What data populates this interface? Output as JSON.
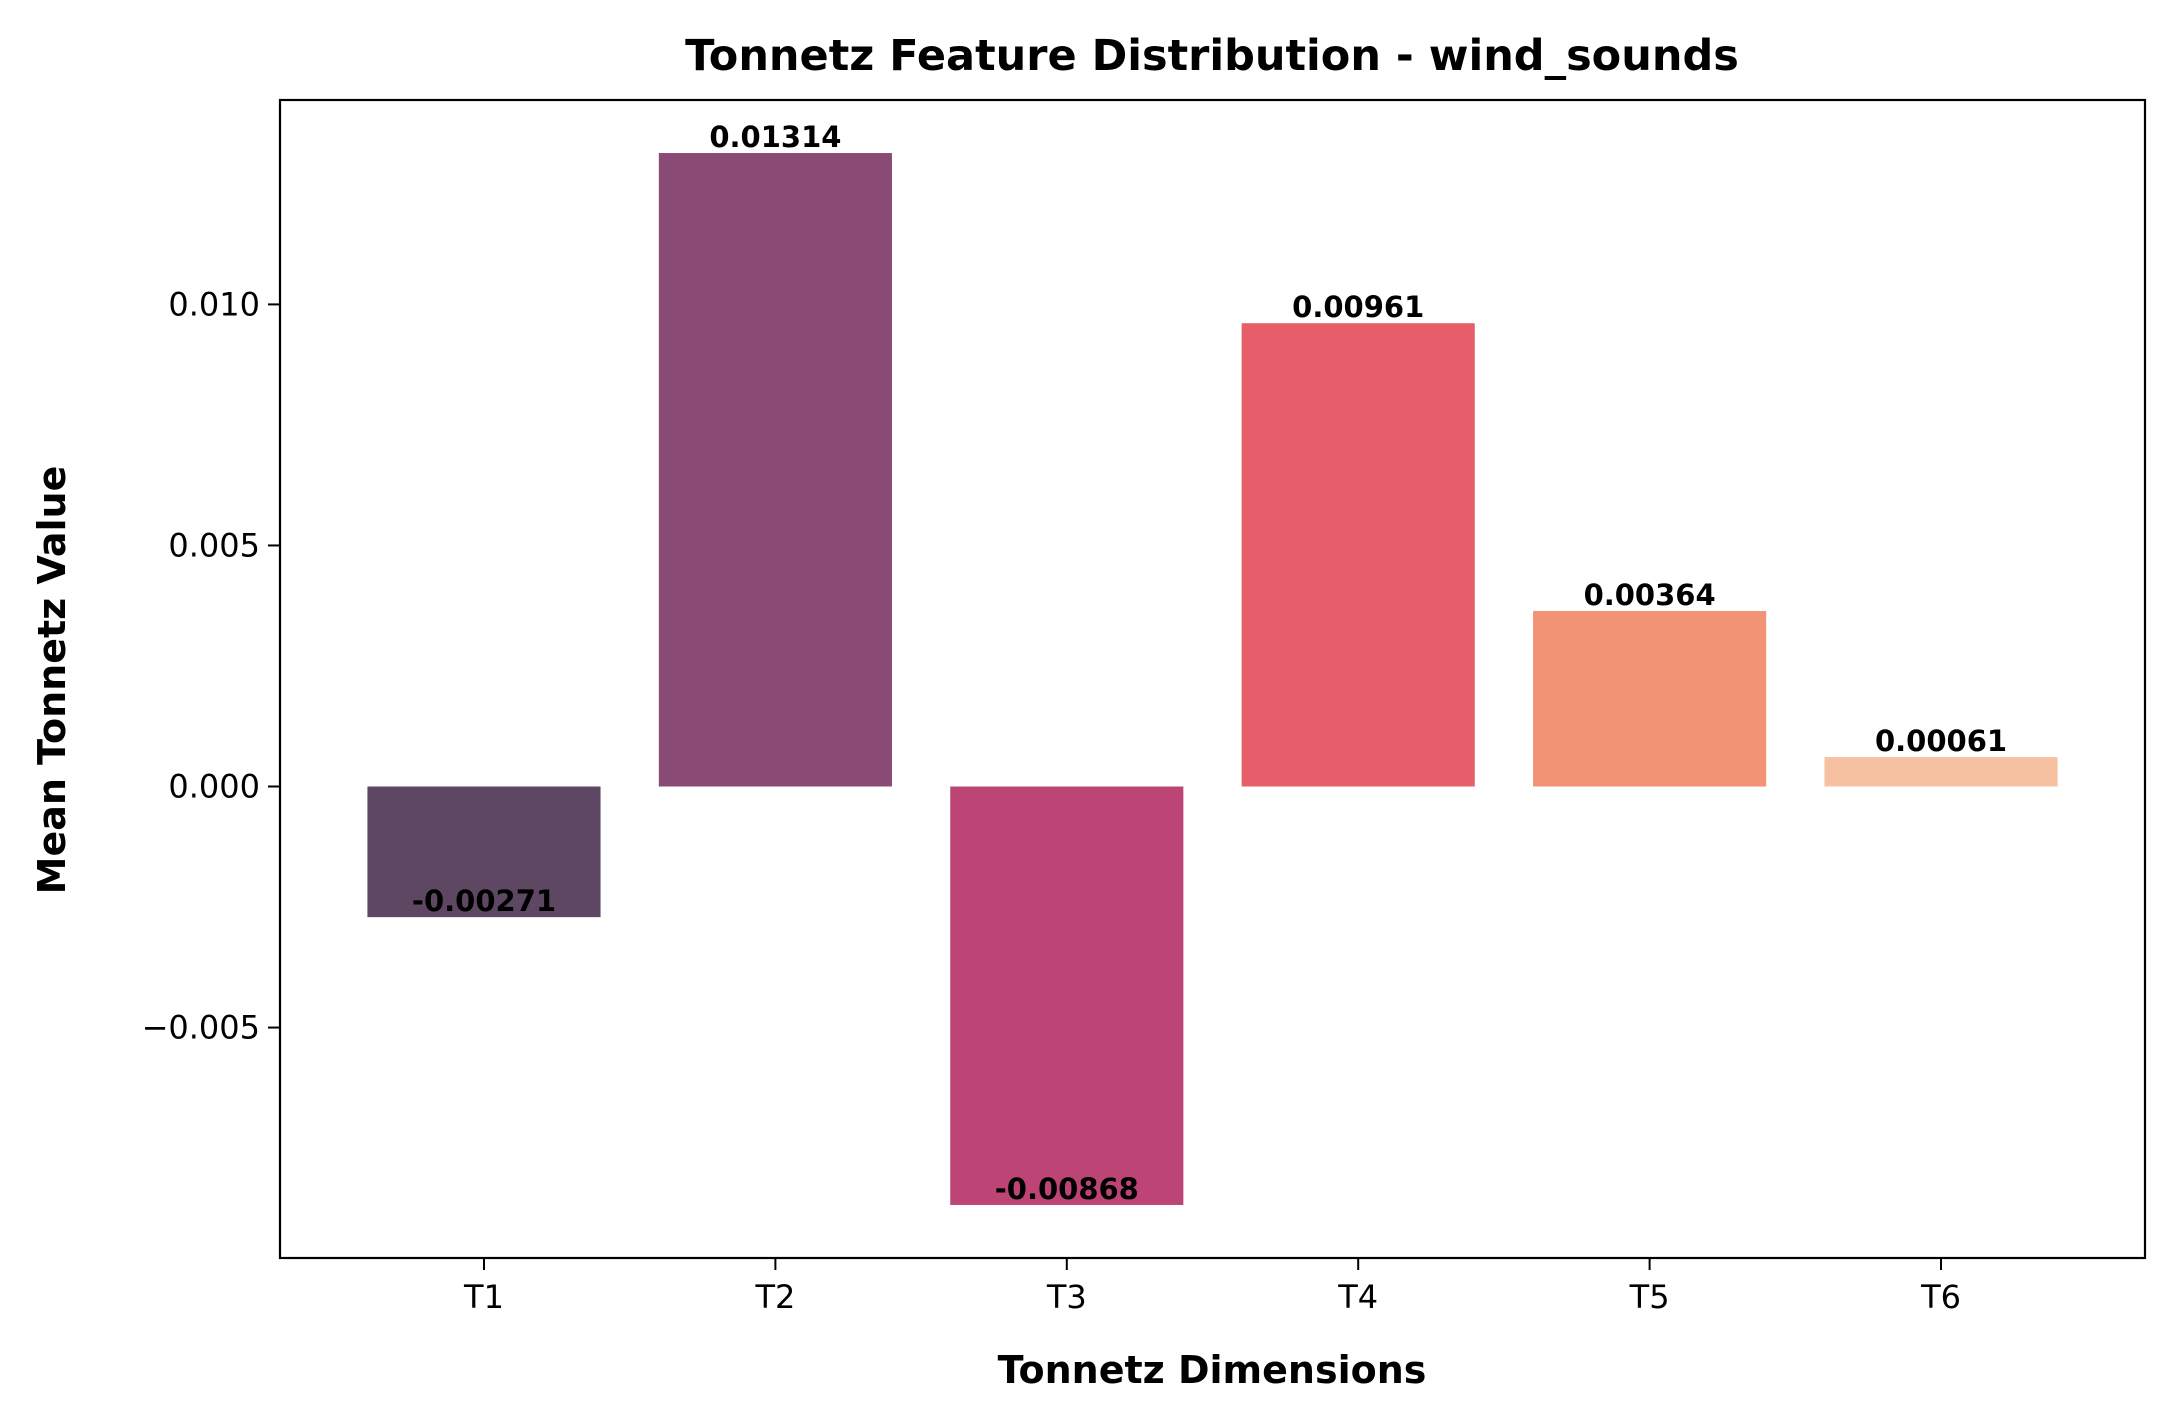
{
  "chart_data": {
    "type": "bar",
    "title": "Tonnetz Feature Distribution - wind_sounds",
    "xlabel": "Tonnetz Dimensions",
    "ylabel": "Mean Tonnetz Value",
    "categories": [
      "T1",
      "T2",
      "T3",
      "T4",
      "T5",
      "T6"
    ],
    "values": [
      -0.00271,
      0.01314,
      -0.00868,
      0.00961,
      0.00364,
      0.00061
    ],
    "value_labels": [
      "-0.00271",
      "0.01314",
      "-0.00868",
      "0.00961",
      "0.00364",
      "0.00061"
    ],
    "colors": [
      "#5e4762",
      "#894b75",
      "#bd4575",
      "#e75d69",
      "#f39375",
      "#f5c1a1"
    ],
    "ylim": [
      -0.00978,
      0.01424
    ],
    "yticks": [
      -0.005,
      0.0,
      0.005,
      0.01
    ],
    "ytick_labels": [
      "−0.005",
      "0.000",
      "0.005",
      "0.010"
    ],
    "grid": false,
    "legend": "none"
  }
}
